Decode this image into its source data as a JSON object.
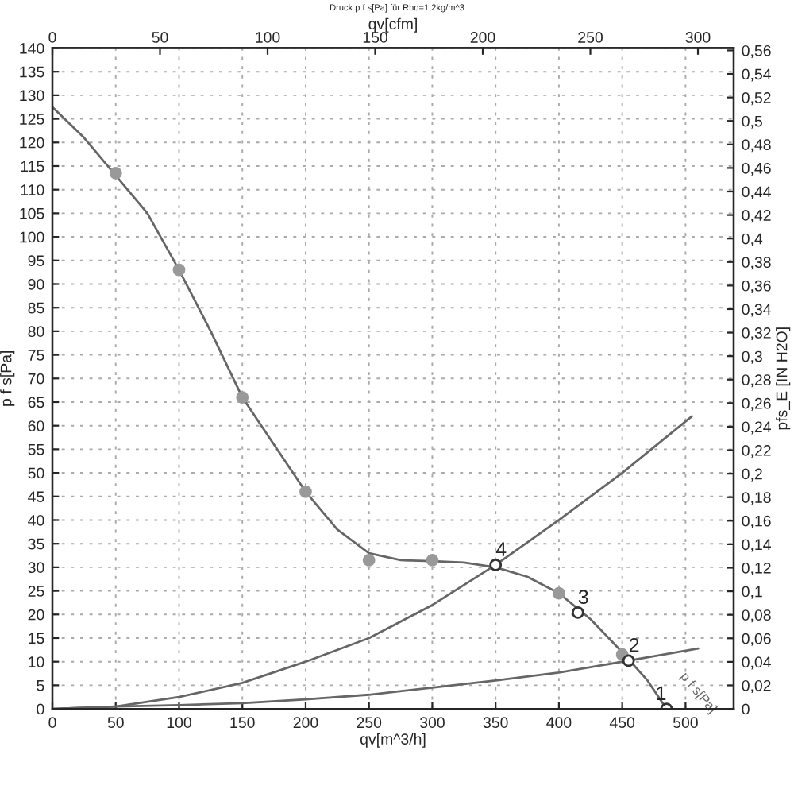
{
  "chart_data": {
    "type": "line",
    "title": "Druck p f s[Pa] für Rho=1,2kg/m^3",
    "xlabel": "qv[m^3/h]",
    "ylabel": "p f s[Pa]",
    "y2label": "pfs_E [IN H2O]",
    "x2label": "qv[cfm]",
    "xlim": [
      0,
      538
    ],
    "ylim": [
      0,
      140
    ],
    "y2lim": [
      0,
      0.562
    ],
    "x2lim": [
      0,
      316.6
    ],
    "xticks": [
      0,
      50,
      100,
      150,
      200,
      250,
      300,
      350,
      400,
      450,
      500
    ],
    "yticks": [
      0,
      5,
      10,
      15,
      20,
      25,
      30,
      35,
      40,
      45,
      50,
      55,
      60,
      65,
      70,
      75,
      80,
      85,
      90,
      95,
      100,
      105,
      110,
      115,
      120,
      125,
      130,
      135,
      140
    ],
    "y2ticks": [
      {
        "value": 0,
        "label": "0"
      },
      {
        "value": 0.02,
        "label": "0,02"
      },
      {
        "value": 0.04,
        "label": "0,04"
      },
      {
        "value": 0.06,
        "label": "0,06"
      },
      {
        "value": 0.08,
        "label": "0,08"
      },
      {
        "value": 0.1,
        "label": "0,1"
      },
      {
        "value": 0.12,
        "label": "0,12"
      },
      {
        "value": 0.14,
        "label": "0,14"
      },
      {
        "value": 0.16,
        "label": "0,16"
      },
      {
        "value": 0.18,
        "label": "0,18"
      },
      {
        "value": 0.2,
        "label": "0,2"
      },
      {
        "value": 0.22,
        "label": "0,22"
      },
      {
        "value": 0.24,
        "label": "0,24"
      },
      {
        "value": 0.26,
        "label": "0,26"
      },
      {
        "value": 0.28,
        "label": "0,28"
      },
      {
        "value": 0.3,
        "label": "0,3"
      },
      {
        "value": 0.32,
        "label": "0,32"
      },
      {
        "value": 0.34,
        "label": "0,34"
      },
      {
        "value": 0.36,
        "label": "0,36"
      },
      {
        "value": 0.38,
        "label": "0,38"
      },
      {
        "value": 0.4,
        "label": "0,4"
      },
      {
        "value": 0.42,
        "label": "0,42"
      },
      {
        "value": 0.44,
        "label": "0,44"
      },
      {
        "value": 0.46,
        "label": "0,46"
      },
      {
        "value": 0.48,
        "label": "0,48"
      },
      {
        "value": 0.5,
        "label": "0,5"
      },
      {
        "value": 0.52,
        "label": "0,52"
      },
      {
        "value": 0.54,
        "label": "0,54"
      },
      {
        "value": 0.56,
        "label": "0,56"
      }
    ],
    "x2ticks": [
      0,
      50,
      100,
      150,
      200,
      250,
      300
    ],
    "grid": true,
    "series": [
      {
        "color": "#666666",
        "x": [
          0,
          25,
          50,
          75,
          100,
          125,
          150,
          175,
          200,
          225,
          250,
          275,
          300,
          325,
          350,
          375,
          400,
          425,
          450,
          470,
          485
        ],
        "values": [
          127.5,
          121,
          113,
          105,
          93,
          80,
          66,
          56,
          46,
          38,
          33,
          31.5,
          31.3,
          31,
          30,
          28,
          24.5,
          19,
          12,
          6,
          0
        ]
      },
      {
        "color": "#666666",
        "x": [
          0,
          50,
          100,
          150,
          200,
          250,
          300,
          350,
          400,
          450,
          505
        ],
        "values": [
          0,
          0.5,
          2.5,
          5.5,
          10,
          15,
          22,
          30.5,
          40,
          50,
          62
        ]
      },
      {
        "color": "#666666",
        "x": [
          0,
          50,
          100,
          150,
          200,
          250,
          300,
          350,
          400,
          455,
          510
        ],
        "values": [
          0,
          0.5,
          0.8,
          1.2,
          2,
          3,
          4.5,
          6,
          7.7,
          10.2,
          12.8
        ]
      },
      {
        "type": "scatter",
        "color": "#999999",
        "marker": "circle",
        "x": [
          50,
          100,
          150,
          200,
          250,
          300,
          400,
          450
        ],
        "values": [
          113.5,
          93,
          66,
          46,
          31.5,
          31.5,
          24.5,
          11.5
        ]
      },
      {
        "type": "scatter",
        "color": "#333333",
        "marker": "circle",
        "x": [
          485,
          455,
          415,
          350
        ],
        "values": [
          0,
          10.2,
          20.4,
          30.5
        ]
      }
    ],
    "annotations": [
      {
        "text": "1",
        "x": 485,
        "y": 0
      },
      {
        "text": "2",
        "x": 455,
        "y": 10.2
      },
      {
        "text": "3",
        "x": 415,
        "y": 20.4
      },
      {
        "text": "4",
        "x": 350,
        "y": 30.5
      },
      "p f s[Pa]"
    ]
  }
}
